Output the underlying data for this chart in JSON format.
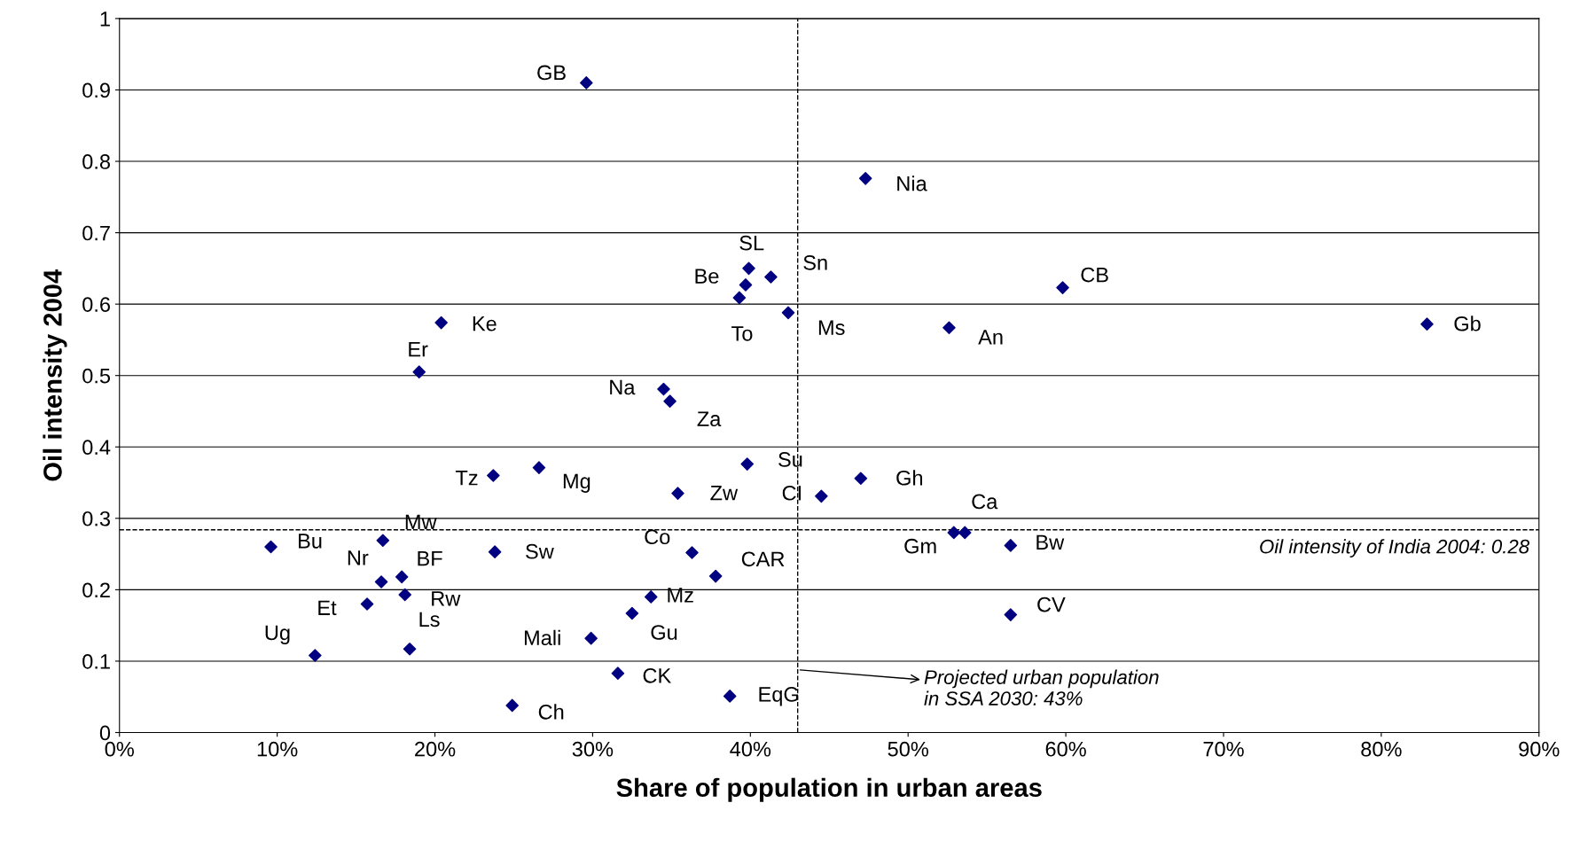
{
  "chart_data": {
    "type": "scatter",
    "xlabel": "Share of population in urban areas",
    "ylabel": "Oil intensity 2004",
    "x": [
      29.6,
      47.3,
      39.9,
      41.3,
      39.7,
      39.3,
      42.4,
      59.8,
      52.6,
      82.9,
      20.4,
      19.0,
      34.5,
      34.9,
      39.8,
      23.7,
      26.6,
      35.4,
      44.5,
      47.0,
      53.6,
      52.9,
      56.5,
      9.6,
      16.7,
      23.8,
      36.3,
      37.8,
      16.6,
      17.9,
      18.1,
      15.7,
      33.7,
      32.5,
      56.5,
      29.9,
      18.4,
      12.4,
      31.6,
      38.7,
      24.9
    ],
    "series": [
      {
        "color": "#000080",
        "values": [
          0.91,
          0.776,
          0.65,
          0.638,
          0.627,
          0.609,
          0.588,
          0.623,
          0.567,
          0.572,
          0.574,
          0.505,
          0.481,
          0.464,
          0.376,
          0.36,
          0.371,
          0.335,
          0.331,
          0.356,
          0.28,
          0.28,
          0.262,
          0.26,
          0.269,
          0.253,
          0.252,
          0.219,
          0.211,
          0.218,
          0.193,
          0.18,
          0.19,
          0.167,
          0.165,
          0.132,
          0.117,
          0.108,
          0.083,
          0.051,
          0.038
        ]
      }
    ],
    "marker": "diamond",
    "grid": "y",
    "legend": false,
    "xlim": [
      0,
      90
    ],
    "xticks": [
      {
        "value": 0,
        "label": "0%"
      },
      {
        "value": 10,
        "label": "10%"
      },
      {
        "value": 20,
        "label": "20%"
      },
      {
        "value": 30,
        "label": "30%"
      },
      {
        "value": 40,
        "label": "40%"
      },
      {
        "value": 50,
        "label": "50%"
      },
      {
        "value": 60,
        "label": "60%"
      },
      {
        "value": 70,
        "label": "70%"
      },
      {
        "value": 80,
        "label": "80%"
      },
      {
        "value": 90,
        "label": "90%"
      }
    ],
    "ylim": [
      0,
      1
    ],
    "yticks": [
      0,
      0.1,
      0.2,
      0.3,
      0.4,
      0.5,
      0.6,
      0.7,
      0.8,
      0.9,
      1
    ],
    "ref_lines": [
      {
        "axis": "y",
        "value": 0.284,
        "label": "Oil intensity of India 2004: 0.28",
        "line_style": "dashed",
        "color": "#000000"
      },
      {
        "axis": "x",
        "value": 43,
        "label": "Projected urban population\nin SSA 2030: 43%",
        "line_style": "dashed",
        "color": "#000000"
      }
    ],
    "annotations": [
      {
        "text": "GB",
        "x": 29.6,
        "y": 0.91
      },
      {
        "text": "Nia",
        "x": 47.3,
        "y": 0.776
      },
      {
        "text": "SL",
        "x": 39.9,
        "y": 0.65
      },
      {
        "text": "Sn",
        "x": 41.3,
        "y": 0.638
      },
      {
        "text": "Be",
        "x": 39.7,
        "y": 0.627
      },
      {
        "text": "To",
        "x": 39.3,
        "y": 0.609
      },
      {
        "text": "Ms",
        "x": 42.4,
        "y": 0.588
      },
      {
        "text": "CB",
        "x": 59.8,
        "y": 0.623
      },
      {
        "text": "An",
        "x": 52.6,
        "y": 0.567
      },
      {
        "text": "Gb",
        "x": 82.9,
        "y": 0.572
      },
      {
        "text": "Ke",
        "x": 20.4,
        "y": 0.574
      },
      {
        "text": "Er",
        "x": 19.0,
        "y": 0.505
      },
      {
        "text": "Na",
        "x": 34.5,
        "y": 0.481
      },
      {
        "text": "Za",
        "x": 34.9,
        "y": 0.464
      },
      {
        "text": "Su",
        "x": 39.8,
        "y": 0.376
      },
      {
        "text": "Tz",
        "x": 23.7,
        "y": 0.36
      },
      {
        "text": "Mg",
        "x": 26.6,
        "y": 0.371
      },
      {
        "text": "Zw",
        "x": 35.4,
        "y": 0.335
      },
      {
        "text": "CI",
        "x": 44.5,
        "y": 0.331
      },
      {
        "text": "Gh",
        "x": 47.0,
        "y": 0.356
      },
      {
        "text": "Ca",
        "x": 53.6,
        "y": 0.28
      },
      {
        "text": "Gm",
        "x": 52.9,
        "y": 0.28
      },
      {
        "text": "Bw",
        "x": 56.5,
        "y": 0.262
      },
      {
        "text": "Bu",
        "x": 9.6,
        "y": 0.26
      },
      {
        "text": "Mw",
        "x": 16.7,
        "y": 0.269
      },
      {
        "text": "Sw",
        "x": 23.8,
        "y": 0.253
      },
      {
        "text": "Co",
        "x": 36.3,
        "y": 0.252
      },
      {
        "text": "CAR",
        "x": 37.8,
        "y": 0.219
      },
      {
        "text": "Nr",
        "x": 16.6,
        "y": 0.211
      },
      {
        "text": "BF",
        "x": 17.9,
        "y": 0.218
      },
      {
        "text": "Rw",
        "x": 18.1,
        "y": 0.193
      },
      {
        "text": "Et",
        "x": 15.7,
        "y": 0.18
      },
      {
        "text": "Mz",
        "x": 33.7,
        "y": 0.19
      },
      {
        "text": "Gu",
        "x": 32.5,
        "y": 0.167
      },
      {
        "text": "CV",
        "x": 56.5,
        "y": 0.165
      },
      {
        "text": "Mali",
        "x": 29.9,
        "y": 0.132
      },
      {
        "text": "Ls",
        "x": 18.4,
        "y": 0.117
      },
      {
        "text": "Ug",
        "x": 12.4,
        "y": 0.108
      },
      {
        "text": "CK",
        "x": 31.6,
        "y": 0.083
      },
      {
        "text": "EqG",
        "x": 38.7,
        "y": 0.051
      },
      {
        "text": "Ch",
        "x": 24.9,
        "y": 0.038
      }
    ]
  }
}
